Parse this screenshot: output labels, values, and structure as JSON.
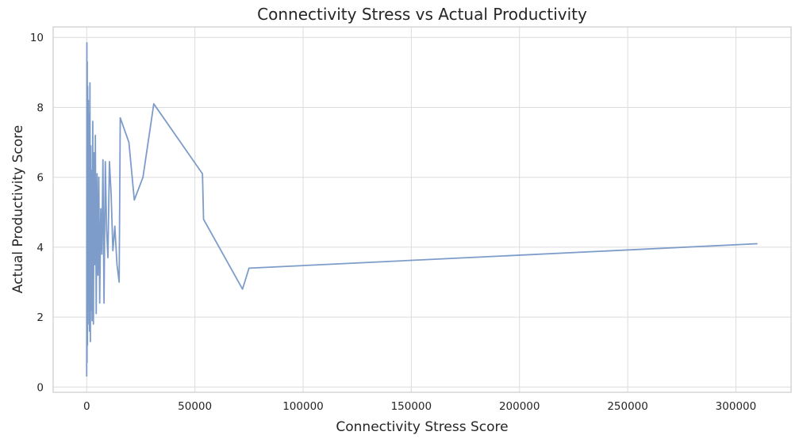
{
  "chart_data": {
    "type": "line",
    "title": "Connectivity Stress vs Actual Productivity",
    "xlabel": "Connectivity Stress Score",
    "ylabel": "Actual Productivity Score",
    "xlim": [
      -15500,
      325500
    ],
    "ylim": [
      -0.15,
      10.3
    ],
    "xticks": [
      0,
      50000,
      100000,
      150000,
      200000,
      250000,
      300000
    ],
    "xtick_labels": [
      "0",
      "50000",
      "100000",
      "150000",
      "200000",
      "250000",
      "300000"
    ],
    "yticks": [
      0,
      2,
      4,
      6,
      8,
      10
    ],
    "ytick_labels": [
      "0",
      "2",
      "4",
      "6",
      "8",
      "10"
    ],
    "grid": true,
    "legend": "none",
    "color": "#7394c5",
    "series": [
      {
        "x": [
          0,
          80,
          150,
          250,
          350,
          450,
          600,
          750,
          900,
          1100,
          1300,
          1500,
          1700,
          1900,
          2100,
          2300,
          2500,
          2800,
          3100,
          3400,
          3700,
          4000,
          4400,
          4800,
          5200,
          5600,
          6000,
          6500,
          7000,
          7500,
          8000,
          8600,
          9200,
          9800,
          10500,
          11300,
          12100,
          13000,
          14000,
          15000,
          15500,
          19500,
          22000,
          26000,
          31000,
          53500,
          54000,
          72000,
          75000,
          310000
        ],
        "y": [
          0.3,
          9.85,
          0.7,
          9.3,
          1.2,
          8.6,
          1.8,
          8.2,
          2.5,
          7.8,
          1.6,
          8.7,
          1.3,
          6.9,
          2.2,
          6.2,
          1.9,
          7.6,
          1.8,
          6.7,
          3.5,
          7.2,
          2.1,
          6.1,
          3.2,
          6.0,
          2.4,
          5.1,
          3.8,
          6.5,
          2.4,
          6.45,
          4.5,
          3.7,
          6.45,
          5.5,
          3.9,
          4.6,
          3.5,
          3.0,
          7.7,
          7.0,
          5.35,
          6.0,
          8.1,
          6.1,
          4.8,
          2.8,
          3.4,
          4.1
        ]
      }
    ]
  }
}
